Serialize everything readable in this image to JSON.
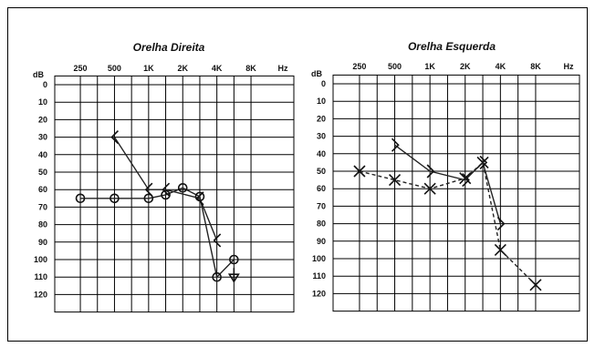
{
  "chart_data": [
    {
      "type": "line",
      "title": "Orelha Direita",
      "x_unit_label": "Hz",
      "y_unit_label": "dB",
      "x_tick_labels": [
        "250",
        "500",
        "1K",
        "2K",
        "4K",
        "8K"
      ],
      "y_tick_labels": [
        "0",
        "10",
        "20",
        "30",
        "40",
        "50",
        "60",
        "70",
        "80",
        "90",
        "100",
        "110",
        "120"
      ],
      "ylim": [
        120,
        0
      ],
      "grid": true,
      "series": [
        {
          "marker": "circle",
          "linestyle": "solid",
          "points": [
            {
              "x": "250",
              "y": 65
            },
            {
              "x": "500",
              "y": 65
            },
            {
              "x": "1K",
              "y": 65
            },
            {
              "x": "1.5K",
              "y": 63
            },
            {
              "x": "2K",
              "y": 59
            },
            {
              "x": "3K",
              "y": 64
            },
            {
              "x": "4K",
              "y": 110
            },
            {
              "x": "6K",
              "y": 100
            }
          ]
        },
        {
          "marker": "bracket-left",
          "linestyle": "solid",
          "points": [
            {
              "x": "500",
              "y": 30
            },
            {
              "x": "1K",
              "y": 60
            },
            {
              "x": "1.5K",
              "y": 60
            },
            {
              "x": "3K",
              "y": 65
            },
            {
              "x": "4K",
              "y": 89
            }
          ]
        },
        {
          "marker": "no-response-arrow",
          "points": [
            {
              "x": "6K",
              "y": 110
            }
          ]
        }
      ]
    },
    {
      "type": "line",
      "title": "Orelha Esquerda",
      "x_unit_label": "Hz",
      "y_unit_label": "dB",
      "x_tick_labels": [
        "250",
        "500",
        "1K",
        "2K",
        "4K",
        "8K"
      ],
      "y_tick_labels": [
        "0",
        "10",
        "20",
        "30",
        "40",
        "50",
        "60",
        "70",
        "80",
        "90",
        "100",
        "110",
        "120"
      ],
      "ylim": [
        120,
        0
      ],
      "grid": true,
      "series": [
        {
          "marker": "x",
          "linestyle": "dashed",
          "points": [
            {
              "x": "250",
              "y": 50
            },
            {
              "x": "500",
              "y": 55
            },
            {
              "x": "1K",
              "y": 60
            },
            {
              "x": "2K",
              "y": 54
            },
            {
              "x": "3K",
              "y": 45
            },
            {
              "x": "4K",
              "y": 95
            },
            {
              "x": "8K",
              "y": 115
            }
          ]
        },
        {
          "marker": "bracket-right",
          "linestyle": "solid",
          "points": [
            {
              "x": "500",
              "y": 35
            },
            {
              "x": "1K",
              "y": 50
            },
            {
              "x": "2K",
              "y": 55
            },
            {
              "x": "3K",
              "y": 45
            },
            {
              "x": "4K",
              "y": 80
            }
          ]
        }
      ]
    }
  ]
}
